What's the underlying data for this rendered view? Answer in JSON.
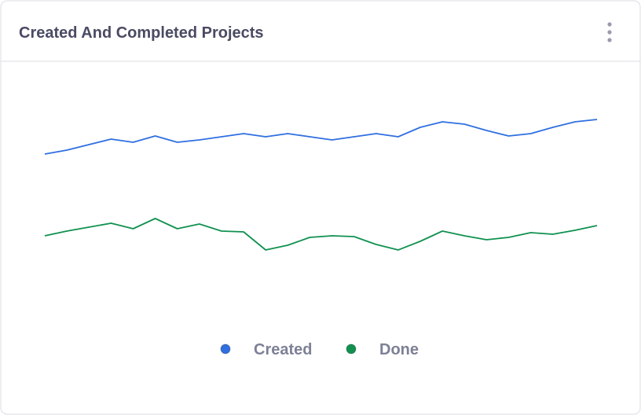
{
  "chart_data": {
    "type": "line",
    "title": "Created And Completed Projects",
    "categories": [
      null,
      null,
      null,
      null,
      null,
      null,
      null,
      null,
      null,
      null,
      null,
      null,
      null,
      null,
      null,
      null,
      null,
      null,
      null,
      null,
      null,
      null,
      null,
      null,
      null,
      null
    ],
    "series": [
      {
        "name": "Created",
        "color": "#2f6fe0",
        "values": [
          224,
          229,
          236,
          243,
          239,
          247,
          239,
          242,
          246,
          250,
          246,
          250,
          246,
          242,
          246,
          250,
          246,
          258,
          265,
          262,
          254,
          247,
          250,
          258,
          265,
          268
        ]
      },
      {
        "name": "Done",
        "color": "#109150",
        "values": [
          120,
          126,
          131,
          136,
          129,
          142,
          129,
          135,
          126,
          125,
          102,
          108,
          118,
          120,
          119,
          109,
          102,
          113,
          126,
          120,
          115,
          118,
          124,
          122,
          127,
          133
        ]
      }
    ],
    "ylim": [
      0,
      320
    ],
    "grid": false,
    "legend": "bottom"
  }
}
